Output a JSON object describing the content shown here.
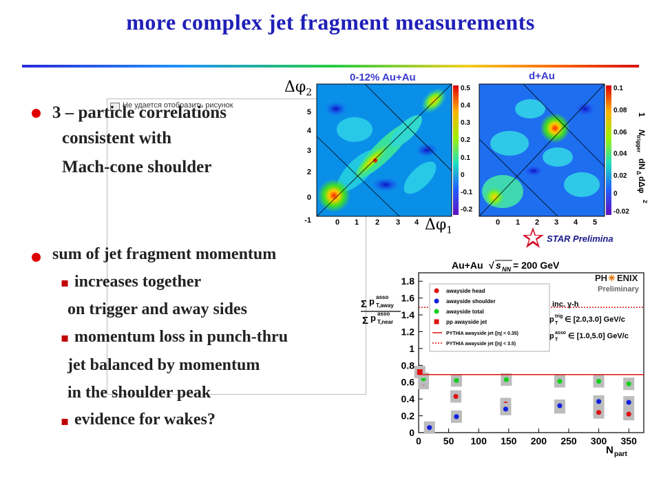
{
  "slide": {
    "title": "more complex jet fragment measurements",
    "bullet1": {
      "text": "3 – particle correlations",
      "lines": [
        "consistent with",
        "Mach-cone shoulder"
      ]
    },
    "bullet2": {
      "text": "sum of jet fragment momentum",
      "items": [
        {
          "marker": "▪",
          "lines": [
            "increases together",
            "on trigger and away sides"
          ]
        },
        {
          "marker": "▪",
          "lines": [
            "momentum loss in punch-thru",
            "jet balanced by momentum",
            "in the shoulder peak"
          ]
        },
        {
          "marker": "▪",
          "lines": [
            "evidence for wakes?"
          ]
        }
      ]
    },
    "broken_image_text": "Не удается отобразить рисунок"
  },
  "star_figure": {
    "panel_left_title": "0-12% Au+Au",
    "panel_right_title": "d+Au",
    "y_axis_symbol": "Δφ",
    "y_axis_sub": "2",
    "x_axis_symbol": "Δφ",
    "x_axis_sub": "1",
    "z_axis_label": "1/N_trigger (dN_Δ/dΔφ)²",
    "z_axis_label_parts": {
      "one": "1",
      "n": "N",
      "n_sub": "trigger",
      "num": "dN",
      "num_sub": "Δ",
      "den": "dΔφ",
      "exp": "2"
    },
    "xy_ticks": [
      "-1",
      "0",
      "1",
      "2",
      "3",
      "4",
      "5"
    ],
    "left_color_ticks": [
      "0.5",
      "0.4",
      "0.3",
      "0.2",
      "0.1",
      "0",
      "-0.1",
      "-0.2"
    ],
    "right_color_ticks": [
      "0.1",
      "0.08",
      "0.06",
      "0.04",
      "0.02",
      "0",
      "-0.02"
    ],
    "logo_text": "STAR Preliminary",
    "colors": {
      "label_blue": "#3a3ad0",
      "logo_red": "#d4102a"
    }
  },
  "chart_data": {
    "type": "scatter",
    "title": "Au+Au √s_NN = 200 GeV",
    "title_parts": {
      "main": "Au+Au",
      "sqrt_s": "s",
      "sqrt_sub": "NN",
      "rest": " = 200 GeV"
    },
    "xlabel": "N_part",
    "xlabel_parts": {
      "main": "N",
      "sub": "part"
    },
    "ylabel": "Σ p_T,away^asso / Σ p_T,near^asso",
    "ylabel_parts": {
      "sigma": "Σ",
      "p": "p",
      "sup": "asso",
      "sub_away": "T,away",
      "sub_near": "T,near"
    },
    "xlim": [
      0,
      375
    ],
    "ylim": [
      0,
      1.9
    ],
    "xticks": [
      0,
      50,
      100,
      150,
      200,
      250,
      300,
      350
    ],
    "yticks": [
      0,
      0.2,
      0.4,
      0.6,
      0.8,
      1,
      1.2,
      1.4,
      1.6,
      1.8
    ],
    "series": [
      {
        "name": "awayside head",
        "marker": "circle",
        "color": "#e01010",
        "x": [
          8,
          62,
          145,
          235,
          300,
          350
        ],
        "y": [
          0.59,
          0.43,
          0.34,
          0.3,
          0.24,
          0.22
        ]
      },
      {
        "name": "awayside shoulder",
        "marker": "circle",
        "color": "#1020e0",
        "x": [
          18,
          63,
          145,
          235,
          300,
          350
        ],
        "y": [
          0.06,
          0.19,
          0.28,
          0.32,
          0.37,
          0.36
        ]
      },
      {
        "name": "awayside total",
        "marker": "circle",
        "color": "#10d020",
        "x": [
          8,
          63,
          146,
          235,
          300,
          350
        ],
        "y": [
          0.64,
          0.62,
          0.63,
          0.61,
          0.61,
          0.58
        ]
      },
      {
        "name": "pp awayside jet",
        "marker": "square",
        "color": "#e01010",
        "x": [
          2
        ],
        "y": [
          0.72
        ]
      },
      {
        "name": "PYTHIA awayside jet (|η| < 0.35)",
        "marker": "line-solid",
        "color": "#e01010",
        "y": 0.69
      },
      {
        "name": "PYTHIA awayside jet (|η| < 3.5)",
        "marker": "line-dotted",
        "color": "#e01010",
        "y": 1.49
      }
    ],
    "legend_position": "top-right",
    "annotations": {
      "logo_top": "PH",
      "logo_star": "✳",
      "logo_rest": "ENIX",
      "logo_sub": "Preliminary",
      "inc": "inc. γ-h",
      "trig_range": "p_T^trig ∈ [2.0,3.0] GeV/c",
      "asso_range": "p_T^asso ∈ [1.0,5.0] GeV/c",
      "trig_parts": {
        "p": "p",
        "sup": "trig",
        "sub": "T",
        "rest": " ∈ [2.0,3.0] GeV/c"
      },
      "asso_parts": {
        "p": "p",
        "sup": "asso",
        "sub": "T",
        "rest": " ∈ [1.0,5.0] GeV/c"
      }
    }
  }
}
